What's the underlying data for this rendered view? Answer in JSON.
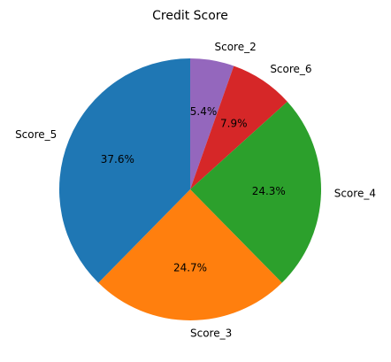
{
  "chart_data": {
    "type": "pie",
    "title": "Credit Score",
    "slices": [
      {
        "label": "Score_2",
        "value": 5.4,
        "pct_label": "5.4%",
        "color": "#9467bd"
      },
      {
        "label": "Score_6",
        "value": 7.9,
        "pct_label": "7.9%",
        "color": "#d62728"
      },
      {
        "label": "Score_4",
        "value": 24.3,
        "pct_label": "24.3%",
        "color": "#2ca02c"
      },
      {
        "label": "Score_3",
        "value": 24.7,
        "pct_label": "24.7%",
        "color": "#ff7f0e"
      },
      {
        "label": "Score_5",
        "value": 37.6,
        "pct_label": "37.6%",
        "color": "#1f77b4"
      }
    ],
    "start_angle_deg": 90,
    "direction": "clockwise"
  }
}
